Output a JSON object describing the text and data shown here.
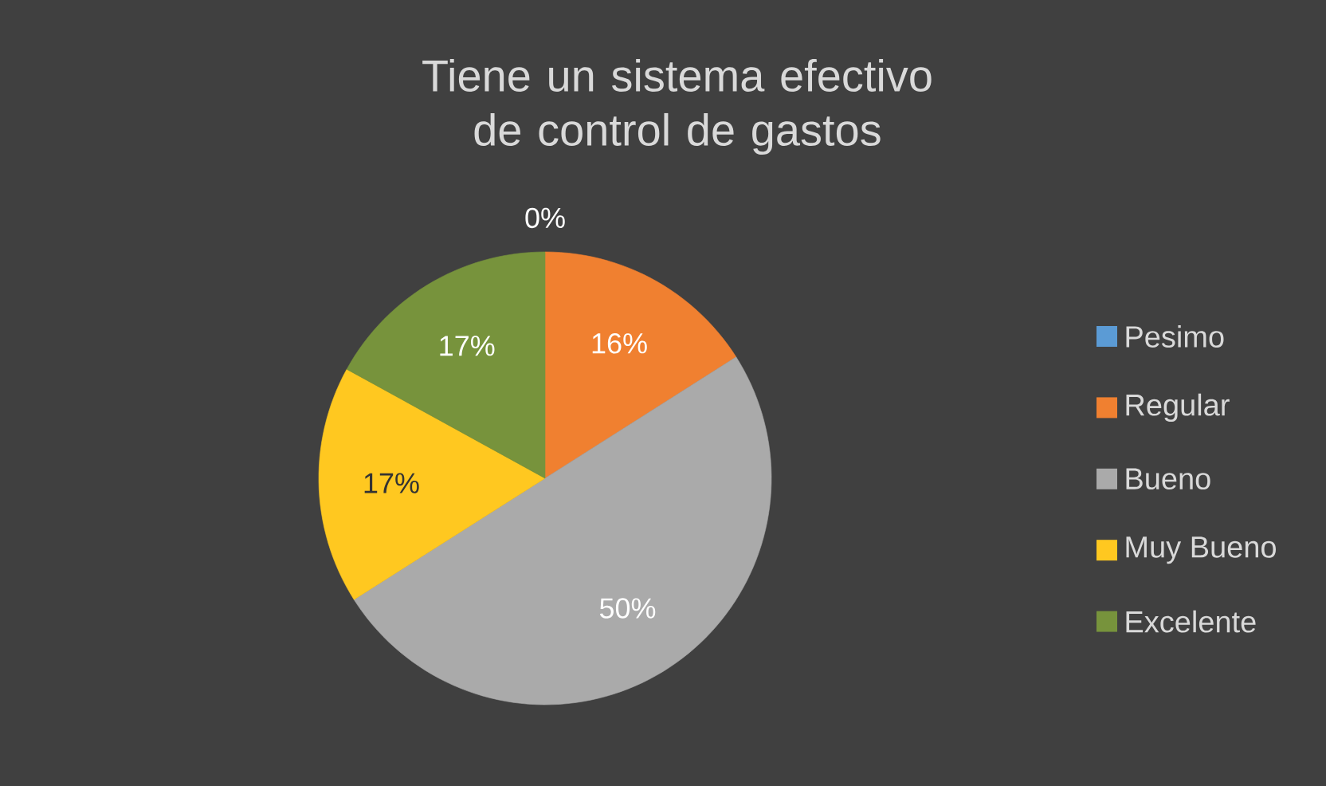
{
  "chart_data": {
    "type": "pie",
    "title": "Tiene un sistema efectivo de control de gastos",
    "categories": [
      "Pesimo",
      "Regular",
      "Bueno",
      "Muy Bueno",
      "Excelente"
    ],
    "values": [
      0,
      16,
      50,
      17,
      17
    ],
    "value_labels": [
      "0%",
      "16%",
      "50%",
      "17%",
      "17%"
    ],
    "colors": [
      "#5b9bd5",
      "#f08030",
      "#aaaaaa",
      "#ffc820",
      "#77933c"
    ],
    "legend": "right"
  }
}
